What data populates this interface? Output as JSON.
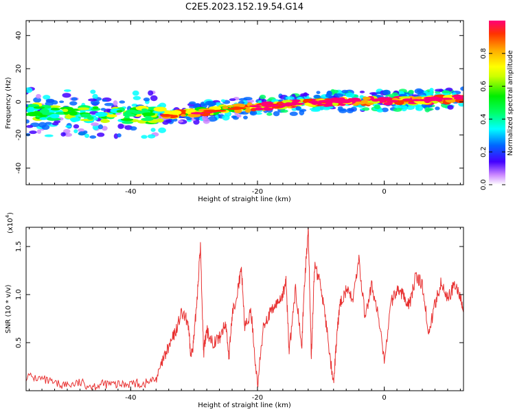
{
  "title": "C2E5.2023.152.19.54.G14",
  "chart_data": [
    {
      "type": "heatmap",
      "xlabel": "Height of straight line (km)",
      "ylabel": "Frequency (Hz)",
      "xlim": [
        -56.5,
        12.5
      ],
      "ylim": [
        -50,
        49
      ],
      "xticks": [
        -40,
        -20,
        0
      ],
      "yticks": [
        40,
        20,
        0,
        -20,
        -40
      ],
      "colorbar": {
        "label": "Normalized spectral amplitude",
        "range": [
          0.0,
          1.0
        ],
        "ticks": [
          0.0,
          0.2,
          0.4,
          0.6,
          0.8
        ],
        "colors": [
          "#ffffff",
          "#cc88ff",
          "#4400ff",
          "#0066ff",
          "#00ffff",
          "#00ff66",
          "#00ee00",
          "#ccff00",
          "#ffff00",
          "#ffaa00",
          "#ff3300",
          "#ff0077"
        ]
      },
      "ridge": {
        "x": [
          -56,
          -50,
          -45,
          -40,
          -35,
          -30,
          -25,
          -20,
          -15,
          -10,
          -5,
          0,
          5,
          10,
          12
        ],
        "y": [
          -6,
          -7,
          -8,
          -8.5,
          -8,
          -6.5,
          -4.5,
          -3,
          -1.5,
          0,
          0.5,
          0.5,
          1,
          1.5,
          2
        ]
      }
    },
    {
      "type": "line",
      "xlabel": "Height of straight line (km)",
      "ylabel": "SNR (10 * v/v)",
      "yscale_label": "(x10",
      "yscale_exp": "4",
      "yscale_close": ")",
      "xlim": [
        -56.5,
        12.5
      ],
      "ylim": [
        0,
        1.7
      ],
      "xticks": [
        -40,
        -20,
        0
      ],
      "yticks": [
        0.5,
        1.0,
        1.5
      ],
      "series": [
        {
          "color": "#e83030",
          "x": [
            -56.5,
            -54,
            -52,
            -50,
            -48,
            -46,
            -44,
            -42,
            -40,
            -38,
            -36,
            -35,
            -34,
            -33,
            -32,
            -31,
            -30.5,
            -30,
            -29.5,
            -29,
            -28.5,
            -28,
            -27,
            -26,
            -25,
            -24.5,
            -24,
            -23,
            -22.5,
            -22,
            -21,
            -20,
            -19,
            -18,
            -17,
            -16,
            -15.5,
            -15,
            -14,
            -13,
            -12.5,
            -12,
            -11.5,
            -11,
            -10,
            -9,
            -8,
            -7.5,
            -7,
            -6,
            -5,
            -4,
            -3,
            -2,
            -1,
            0,
            1,
            2,
            3,
            4,
            5,
            6,
            7,
            8,
            9,
            10,
            11,
            12,
            12.5
          ],
          "y": [
            0.15,
            0.12,
            0.07,
            0.06,
            0.08,
            0.05,
            0.07,
            0.06,
            0.08,
            0.07,
            0.12,
            0.3,
            0.45,
            0.6,
            0.8,
            0.72,
            0.35,
            0.55,
            1.0,
            1.5,
            0.4,
            0.62,
            0.5,
            0.55,
            0.7,
            0.35,
            0.78,
            1.1,
            1.25,
            0.65,
            0.82,
            0.05,
            0.7,
            0.8,
            0.9,
            1.0,
            1.15,
            0.4,
            1.05,
            0.5,
            1.2,
            1.7,
            0.35,
            1.3,
            1.1,
            0.6,
            0.05,
            0.55,
            0.9,
            1.05,
            0.95,
            1.35,
            0.75,
            1.1,
            0.8,
            0.3,
            0.9,
            1.05,
            1.0,
            0.9,
            1.2,
            1.1,
            0.6,
            0.9,
            1.15,
            0.95,
            1.1,
            1.0,
            0.75
          ]
        }
      ]
    }
  ]
}
